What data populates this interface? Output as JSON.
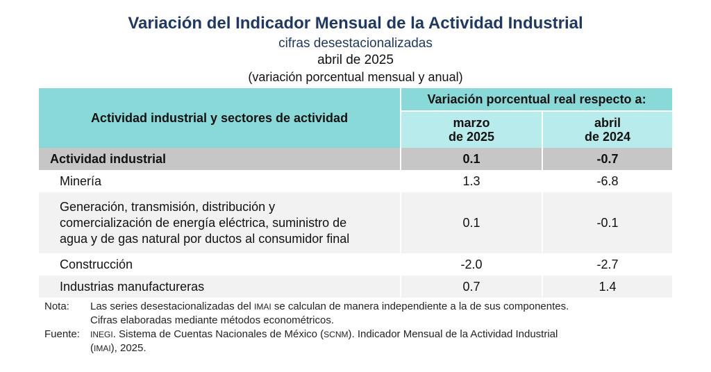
{
  "header": {
    "title": "Variación del Indicador Mensual de la Actividad Industrial",
    "subtitle": "cifras desestacionalizadas",
    "date": "abril de 2025",
    "units": "(variación porcentual mensual y anual)"
  },
  "table": {
    "row_header": "Actividad industrial y sectores de actividad",
    "group_header": "Variación porcentual real respecto a:",
    "col1_line1": "marzo",
    "col1_line2": "de 2025",
    "col2_line1": "abril",
    "col2_line2": "de 2024",
    "rows": [
      {
        "label": "Actividad industrial",
        "v1": "0.1",
        "v2": "-0.7"
      },
      {
        "label": "Minería",
        "v1": "1.3",
        "v2": "-6.8"
      },
      {
        "label_lines": [
          "Generación, transmisión, distribución y",
          "comercialización de energía eléctrica, suministro de",
          "agua y de gas natural por ductos al consumidor final"
        ],
        "v1": "0.1",
        "v2": "-0.1"
      },
      {
        "label": "Construcción",
        "v1": "-2.0",
        "v2": "-2.7"
      },
      {
        "label": "Industrias manufactureras",
        "v1": "0.7",
        "v2": "1.4"
      }
    ]
  },
  "notes": {
    "nota_label": "Nota:",
    "nota_line1_a": "Las series desestacionalizadas del ",
    "nota_line1_abbr": "IMAI",
    "nota_line1_b": " se calculan de manera independiente a la de sus componentes.",
    "nota_line2": "Cifras elaboradas mediante métodos econométricos.",
    "fuente_label": "Fuente:",
    "fuente_abbr1": "INEGI",
    "fuente_text1": ". Sistema de Cuentas Nacionales de México (",
    "fuente_abbr2": "SCNM",
    "fuente_text2": "). Indicador Mensual de la Actividad Industrial",
    "fuente_line2_a": "(",
    "fuente_abbr3": "IMAI",
    "fuente_line2_b": "), 2025."
  }
}
